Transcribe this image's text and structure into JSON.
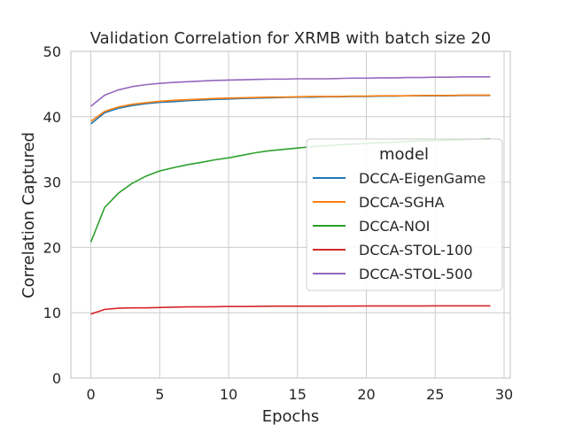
{
  "chart_data": {
    "type": "line",
    "title": "Validation Correlation for XRMB with batch size 20",
    "xlabel": "Epochs",
    "ylabel": "Correlation Captured",
    "xlim": [
      -1.45,
      30.45
    ],
    "ylim": [
      0,
      50
    ],
    "xticks": [
      0,
      5,
      10,
      15,
      20,
      25,
      30
    ],
    "yticks": [
      0,
      10,
      20,
      30,
      40,
      50
    ],
    "grid": true,
    "legend_title": "model",
    "legend_position": "center-right",
    "x": [
      0,
      1,
      2,
      3,
      4,
      5,
      6,
      7,
      8,
      9,
      10,
      11,
      12,
      13,
      14,
      15,
      16,
      17,
      18,
      19,
      20,
      21,
      22,
      23,
      24,
      25,
      26,
      27,
      28,
      29
    ],
    "series": [
      {
        "name": "DCCA-EigenGame",
        "color": "#1f77b4",
        "values": [
          38.9,
          40.6,
          41.3,
          41.7,
          42.0,
          42.2,
          42.3,
          42.45,
          42.55,
          42.65,
          42.7,
          42.8,
          42.85,
          42.9,
          42.95,
          43.0,
          43.0,
          43.05,
          43.05,
          43.1,
          43.1,
          43.15,
          43.15,
          43.2,
          43.2,
          43.2,
          43.2,
          43.25,
          43.25,
          43.25
        ]
      },
      {
        "name": "DCCA-SGHA",
        "color": "#ff7f0e",
        "values": [
          39.3,
          40.8,
          41.5,
          41.9,
          42.15,
          42.35,
          42.5,
          42.6,
          42.7,
          42.8,
          42.85,
          42.9,
          42.95,
          43.0,
          43.0,
          43.05,
          43.1,
          43.1,
          43.1,
          43.15,
          43.15,
          43.2,
          43.2,
          43.2,
          43.25,
          43.25,
          43.25,
          43.3,
          43.3,
          43.3
        ]
      },
      {
        "name": "DCCA-NOI",
        "color": "#2ca02c",
        "values": [
          20.8,
          26.1,
          28.3,
          29.8,
          30.9,
          31.7,
          32.2,
          32.65,
          33.0,
          33.4,
          33.7,
          34.1,
          34.5,
          34.8,
          35.0,
          35.2,
          35.4,
          35.55,
          35.7,
          35.8,
          35.9,
          36.0,
          36.1,
          36.2,
          36.3,
          36.35,
          36.4,
          36.45,
          36.55,
          36.6
        ]
      },
      {
        "name": "DCCA-STOL-100",
        "color": "#d62728",
        "values": [
          9.8,
          10.5,
          10.7,
          10.75,
          10.75,
          10.8,
          10.85,
          10.9,
          10.9,
          10.92,
          10.95,
          10.95,
          10.97,
          11.0,
          11.0,
          11.0,
          11.0,
          11.0,
          11.02,
          11.02,
          11.03,
          11.03,
          11.03,
          11.04,
          11.04,
          11.05,
          11.05,
          11.05,
          11.05,
          11.05
        ]
      },
      {
        "name": "DCCA-STOL-500",
        "color": "#9467bd",
        "values": [
          41.6,
          43.3,
          44.1,
          44.6,
          44.9,
          45.1,
          45.25,
          45.35,
          45.45,
          45.55,
          45.6,
          45.65,
          45.7,
          45.75,
          45.75,
          45.8,
          45.8,
          45.8,
          45.85,
          45.9,
          45.9,
          45.95,
          45.95,
          46.0,
          46.0,
          46.05,
          46.05,
          46.1,
          46.1,
          46.1
        ]
      }
    ]
  }
}
